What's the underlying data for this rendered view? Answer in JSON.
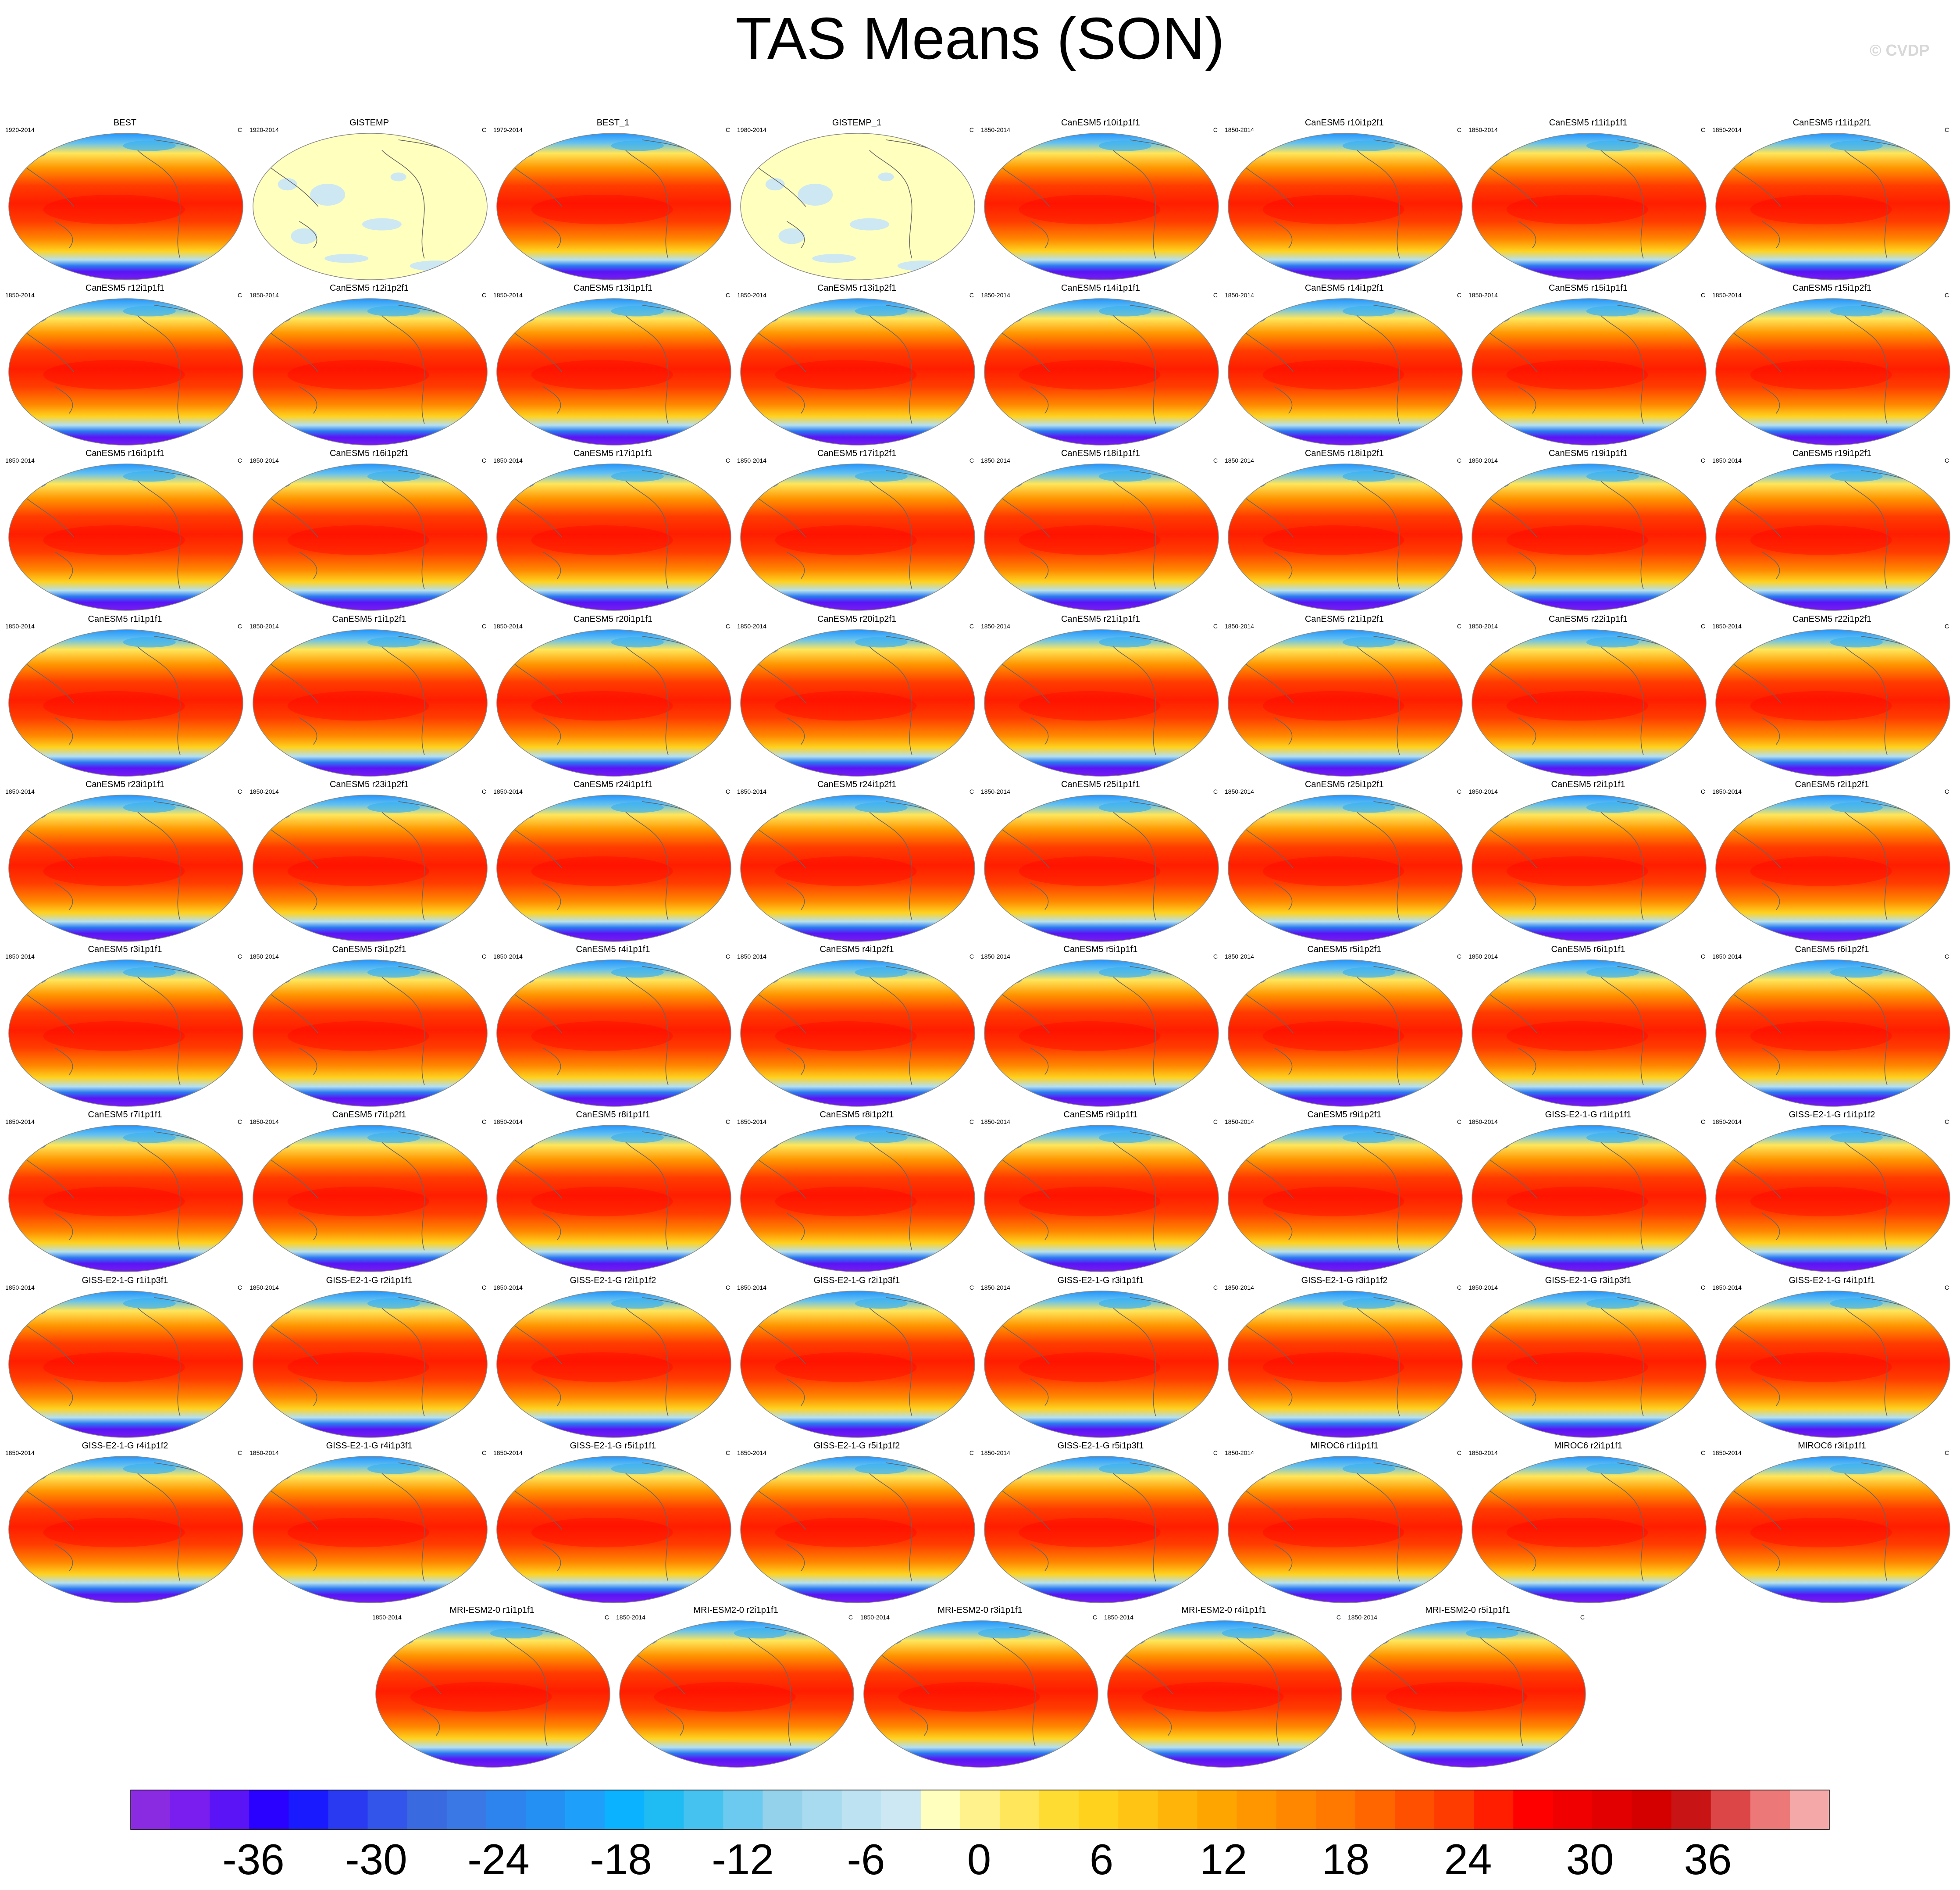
{
  "title": "TAS Means (SON)",
  "credit": "© CVDP",
  "units": "C",
  "panels": [
    {
      "name": "BEST",
      "years": "1920-2014",
      "style": "model"
    },
    {
      "name": "GISTEMP",
      "years": "1920-2014",
      "style": "anom"
    },
    {
      "name": "BEST_1",
      "years": "1979-2014",
      "style": "model"
    },
    {
      "name": "GISTEMP_1",
      "years": "1980-2014",
      "style": "anom"
    },
    {
      "name": "CanESM5 r10i1p1f1",
      "years": "1850-2014",
      "style": "model"
    },
    {
      "name": "CanESM5 r10i1p2f1",
      "years": "1850-2014",
      "style": "model"
    },
    {
      "name": "CanESM5 r11i1p1f1",
      "years": "1850-2014",
      "style": "model"
    },
    {
      "name": "CanESM5 r11i1p2f1",
      "years": "1850-2014",
      "style": "model"
    },
    {
      "name": "CanESM5 r12i1p1f1",
      "years": "1850-2014",
      "style": "model"
    },
    {
      "name": "CanESM5 r12i1p2f1",
      "years": "1850-2014",
      "style": "model"
    },
    {
      "name": "CanESM5 r13i1p1f1",
      "years": "1850-2014",
      "style": "model"
    },
    {
      "name": "CanESM5 r13i1p2f1",
      "years": "1850-2014",
      "style": "model"
    },
    {
      "name": "CanESM5 r14i1p1f1",
      "years": "1850-2014",
      "style": "model"
    },
    {
      "name": "CanESM5 r14i1p2f1",
      "years": "1850-2014",
      "style": "model"
    },
    {
      "name": "CanESM5 r15i1p1f1",
      "years": "1850-2014",
      "style": "model"
    },
    {
      "name": "CanESM5 r15i1p2f1",
      "years": "1850-2014",
      "style": "model"
    },
    {
      "name": "CanESM5 r16i1p1f1",
      "years": "1850-2014",
      "style": "model"
    },
    {
      "name": "CanESM5 r16i1p2f1",
      "years": "1850-2014",
      "style": "model"
    },
    {
      "name": "CanESM5 r17i1p1f1",
      "years": "1850-2014",
      "style": "model"
    },
    {
      "name": "CanESM5 r17i1p2f1",
      "years": "1850-2014",
      "style": "model"
    },
    {
      "name": "CanESM5 r18i1p1f1",
      "years": "1850-2014",
      "style": "model"
    },
    {
      "name": "CanESM5 r18i1p2f1",
      "years": "1850-2014",
      "style": "model"
    },
    {
      "name": "CanESM5 r19i1p1f1",
      "years": "1850-2014",
      "style": "model"
    },
    {
      "name": "CanESM5 r19i1p2f1",
      "years": "1850-2014",
      "style": "model"
    },
    {
      "name": "CanESM5 r1i1p1f1",
      "years": "1850-2014",
      "style": "model"
    },
    {
      "name": "CanESM5 r1i1p2f1",
      "years": "1850-2014",
      "style": "model"
    },
    {
      "name": "CanESM5 r20i1p1f1",
      "years": "1850-2014",
      "style": "model"
    },
    {
      "name": "CanESM5 r20i1p2f1",
      "years": "1850-2014",
      "style": "model"
    },
    {
      "name": "CanESM5 r21i1p1f1",
      "years": "1850-2014",
      "style": "model"
    },
    {
      "name": "CanESM5 r21i1p2f1",
      "years": "1850-2014",
      "style": "model"
    },
    {
      "name": "CanESM5 r22i1p1f1",
      "years": "1850-2014",
      "style": "model"
    },
    {
      "name": "CanESM5 r22i1p2f1",
      "years": "1850-2014",
      "style": "model"
    },
    {
      "name": "CanESM5 r23i1p1f1",
      "years": "1850-2014",
      "style": "model"
    },
    {
      "name": "CanESM5 r23i1p2f1",
      "years": "1850-2014",
      "style": "model"
    },
    {
      "name": "CanESM5 r24i1p1f1",
      "years": "1850-2014",
      "style": "model"
    },
    {
      "name": "CanESM5 r24i1p2f1",
      "years": "1850-2014",
      "style": "model"
    },
    {
      "name": "CanESM5 r25i1p1f1",
      "years": "1850-2014",
      "style": "model"
    },
    {
      "name": "CanESM5 r25i1p2f1",
      "years": "1850-2014",
      "style": "model"
    },
    {
      "name": "CanESM5 r2i1p1f1",
      "years": "1850-2014",
      "style": "model"
    },
    {
      "name": "CanESM5 r2i1p2f1",
      "years": "1850-2014",
      "style": "model"
    },
    {
      "name": "CanESM5 r3i1p1f1",
      "years": "1850-2014",
      "style": "model"
    },
    {
      "name": "CanESM5 r3i1p2f1",
      "years": "1850-2014",
      "style": "model"
    },
    {
      "name": "CanESM5 r4i1p1f1",
      "years": "1850-2014",
      "style": "model"
    },
    {
      "name": "CanESM5 r4i1p2f1",
      "years": "1850-2014",
      "style": "model"
    },
    {
      "name": "CanESM5 r5i1p1f1",
      "years": "1850-2014",
      "style": "model"
    },
    {
      "name": "CanESM5 r5i1p2f1",
      "years": "1850-2014",
      "style": "model"
    },
    {
      "name": "CanESM5 r6i1p1f1",
      "years": "1850-2014",
      "style": "model"
    },
    {
      "name": "CanESM5 r6i1p2f1",
      "years": "1850-2014",
      "style": "model"
    },
    {
      "name": "CanESM5 r7i1p1f1",
      "years": "1850-2014",
      "style": "model"
    },
    {
      "name": "CanESM5 r7i1p2f1",
      "years": "1850-2014",
      "style": "model"
    },
    {
      "name": "CanESM5 r8i1p1f1",
      "years": "1850-2014",
      "style": "model"
    },
    {
      "name": "CanESM5 r8i1p2f1",
      "years": "1850-2014",
      "style": "model"
    },
    {
      "name": "CanESM5 r9i1p1f1",
      "years": "1850-2014",
      "style": "model"
    },
    {
      "name": "CanESM5 r9i1p2f1",
      "years": "1850-2014",
      "style": "model"
    },
    {
      "name": "GISS-E2-1-G r1i1p1f1",
      "years": "1850-2014",
      "style": "model"
    },
    {
      "name": "GISS-E2-1-G r1i1p1f2",
      "years": "1850-2014",
      "style": "model"
    },
    {
      "name": "GISS-E2-1-G r1i1p3f1",
      "years": "1850-2014",
      "style": "model"
    },
    {
      "name": "GISS-E2-1-G r2i1p1f1",
      "years": "1850-2014",
      "style": "model"
    },
    {
      "name": "GISS-E2-1-G r2i1p1f2",
      "years": "1850-2014",
      "style": "model"
    },
    {
      "name": "GISS-E2-1-G r2i1p3f1",
      "years": "1850-2014",
      "style": "model"
    },
    {
      "name": "GISS-E2-1-G r3i1p1f1",
      "years": "1850-2014",
      "style": "model"
    },
    {
      "name": "GISS-E2-1-G r3i1p1f2",
      "years": "1850-2014",
      "style": "model"
    },
    {
      "name": "GISS-E2-1-G r3i1p3f1",
      "years": "1850-2014",
      "style": "model"
    },
    {
      "name": "GISS-E2-1-G r4i1p1f1",
      "years": "1850-2014",
      "style": "model"
    },
    {
      "name": "GISS-E2-1-G r4i1p1f2",
      "years": "1850-2014",
      "style": "model"
    },
    {
      "name": "GISS-E2-1-G r4i1p3f1",
      "years": "1850-2014",
      "style": "model"
    },
    {
      "name": "GISS-E2-1-G r5i1p1f1",
      "years": "1850-2014",
      "style": "model"
    },
    {
      "name": "GISS-E2-1-G r5i1p1f2",
      "years": "1850-2014",
      "style": "model"
    },
    {
      "name": "GISS-E2-1-G r5i1p3f1",
      "years": "1850-2014",
      "style": "model"
    },
    {
      "name": "MIROC6 r1i1p1f1",
      "years": "1850-2014",
      "style": "model"
    },
    {
      "name": "MIROC6 r2i1p1f1",
      "years": "1850-2014",
      "style": "model"
    },
    {
      "name": "MIROC6 r3i1p1f1",
      "years": "1850-2014",
      "style": "model"
    },
    {
      "name": "MRI-ESM2-0 r1i1p1f1",
      "years": "1850-2014",
      "style": "model"
    },
    {
      "name": "MRI-ESM2-0 r2i1p1f1",
      "years": "1850-2014",
      "style": "model"
    },
    {
      "name": "MRI-ESM2-0 r3i1p1f1",
      "years": "1850-2014",
      "style": "model"
    },
    {
      "name": "MRI-ESM2-0 r4i1p1f1",
      "years": "1850-2014",
      "style": "model"
    },
    {
      "name": "MRI-ESM2-0 r5i1p1f1",
      "years": "1850-2014",
      "style": "model"
    }
  ],
  "colorbar": {
    "tick_labels": [
      "-36",
      "-30",
      "-24",
      "-18",
      "-12",
      "-6",
      "0",
      "6",
      "12",
      "18",
      "24",
      "30",
      "36"
    ],
    "colors": [
      "#8a2be2",
      "#7a1ef0",
      "#5a14f5",
      "#2a00ff",
      "#1a1aff",
      "#2a3af0",
      "#3355ea",
      "#3a6ae0",
      "#3a78e6",
      "#2e84ee",
      "#2490f4",
      "#1ea0fa",
      "#0bb2ff",
      "#1fbcf4",
      "#45c2f0",
      "#6ccaf0",
      "#93d2ea",
      "#a8daf0",
      "#bde2f2",
      "#cde8f2",
      "#ffffbe",
      "#fff28c",
      "#ffe65a",
      "#ffdc32",
      "#ffd21e",
      "#ffc414",
      "#ffb40a",
      "#ffa500",
      "#ff9600",
      "#ff8700",
      "#ff7800",
      "#ff6600",
      "#ff5000",
      "#ff3c00",
      "#ff1e00",
      "#ff0000",
      "#f00000",
      "#e20000",
      "#d40000",
      "#c81414",
      "#dc4646",
      "#ec7878",
      "#f4a8a8"
    ],
    "anomaly_color": "#ffffbe",
    "anomaly_blob_color": "#cde8f2"
  }
}
